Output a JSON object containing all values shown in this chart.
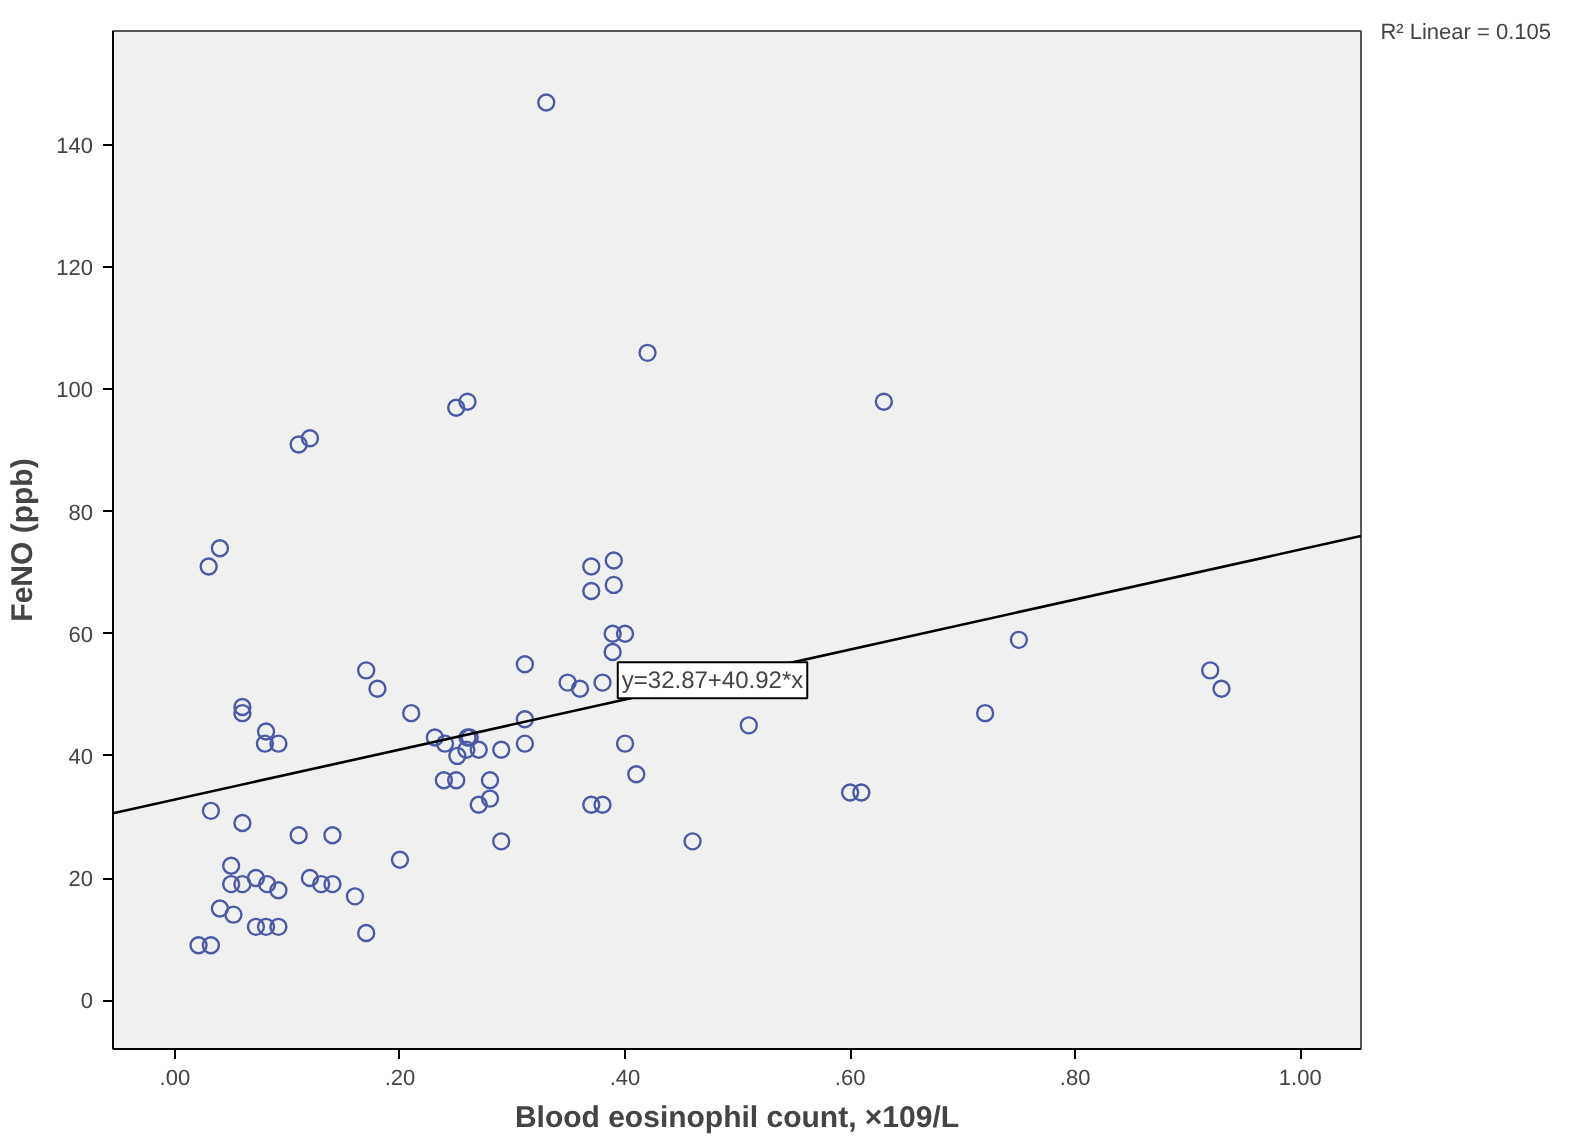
{
  "chart_data": {
    "type": "scatter",
    "xlabel": "Blood eosinophil count, ×109/L",
    "ylabel": "FeNO (ppb)",
    "xlim": [
      -0.055,
      1.054
    ],
    "ylim": [
      -8,
      158.7
    ],
    "xticks": [
      {
        "value": 0,
        "label": ".00"
      },
      {
        "value": 0.2,
        "label": ".20"
      },
      {
        "value": 0.4,
        "label": ".40"
      },
      {
        "value": 0.6,
        "label": ".60"
      },
      {
        "value": 0.8,
        "label": ".80"
      },
      {
        "value": 1.0,
        "label": "1.00"
      }
    ],
    "yticks": [
      0,
      20,
      40,
      60,
      80,
      100,
      120,
      140
    ],
    "grid": false,
    "marker": "circle",
    "annotations": [
      "R² Linear = 0.105",
      {
        "text": "y=32.87+40.92*x",
        "x": 0.39,
        "y": 48.8
      }
    ],
    "series": [
      {
        "color": "#4b5aa6",
        "x": [
          0.03,
          0.06,
          0.06,
          0.081,
          0.08,
          0.092,
          0.17,
          0.18,
          0.21,
          0.231,
          0.24,
          0.26,
          0.262,
          0.251,
          0.259,
          0.27,
          0.29,
          0.311,
          0.311,
          0.311,
          0.349,
          0.36,
          0.38,
          0.389,
          0.4,
          0.389,
          0.239,
          0.25,
          0.28,
          0.28,
          0.27,
          0.29,
          0.37,
          0.38,
          0.032,
          0.06,
          0.11,
          0.14,
          0.2,
          0.05,
          0.05,
          0.06,
          0.072,
          0.082,
          0.092,
          0.12,
          0.13,
          0.14,
          0.16,
          0.04,
          0.052,
          0.072,
          0.081,
          0.092,
          0.17,
          0.021,
          0.032,
          0.37,
          0.39,
          0.4,
          0.41,
          0.46,
          0.51,
          0.33,
          0.42,
          0.25,
          0.26,
          0.11,
          0.12,
          0.04,
          0.37,
          0.39,
          0.63,
          0.75,
          0.72,
          0.92,
          0.93,
          0.6,
          0.61
        ],
        "values": [
          71,
          48,
          47,
          44,
          42,
          42,
          54,
          51,
          47,
          43,
          42,
          43,
          43,
          40,
          41,
          41,
          41,
          55,
          46,
          42,
          52,
          51,
          52,
          60,
          60,
          57,
          36,
          36,
          36,
          33,
          32,
          26,
          32,
          32,
          31,
          29,
          27,
          27,
          23,
          22,
          19,
          19,
          20,
          19,
          18,
          20,
          19,
          19,
          17,
          15,
          14,
          12,
          12,
          12,
          11,
          9,
          9,
          67,
          68,
          42,
          37,
          26,
          45,
          147,
          106,
          97,
          98,
          91,
          92,
          74,
          71,
          72,
          98,
          59,
          47,
          54,
          51,
          34,
          34
        ]
      },
      {
        "type": "line",
        "marker": "none",
        "color": "#000000",
        "x": [
          -0.055,
          1.054
        ],
        "values": [
          30.6,
          76.0
        ]
      }
    ]
  }
}
